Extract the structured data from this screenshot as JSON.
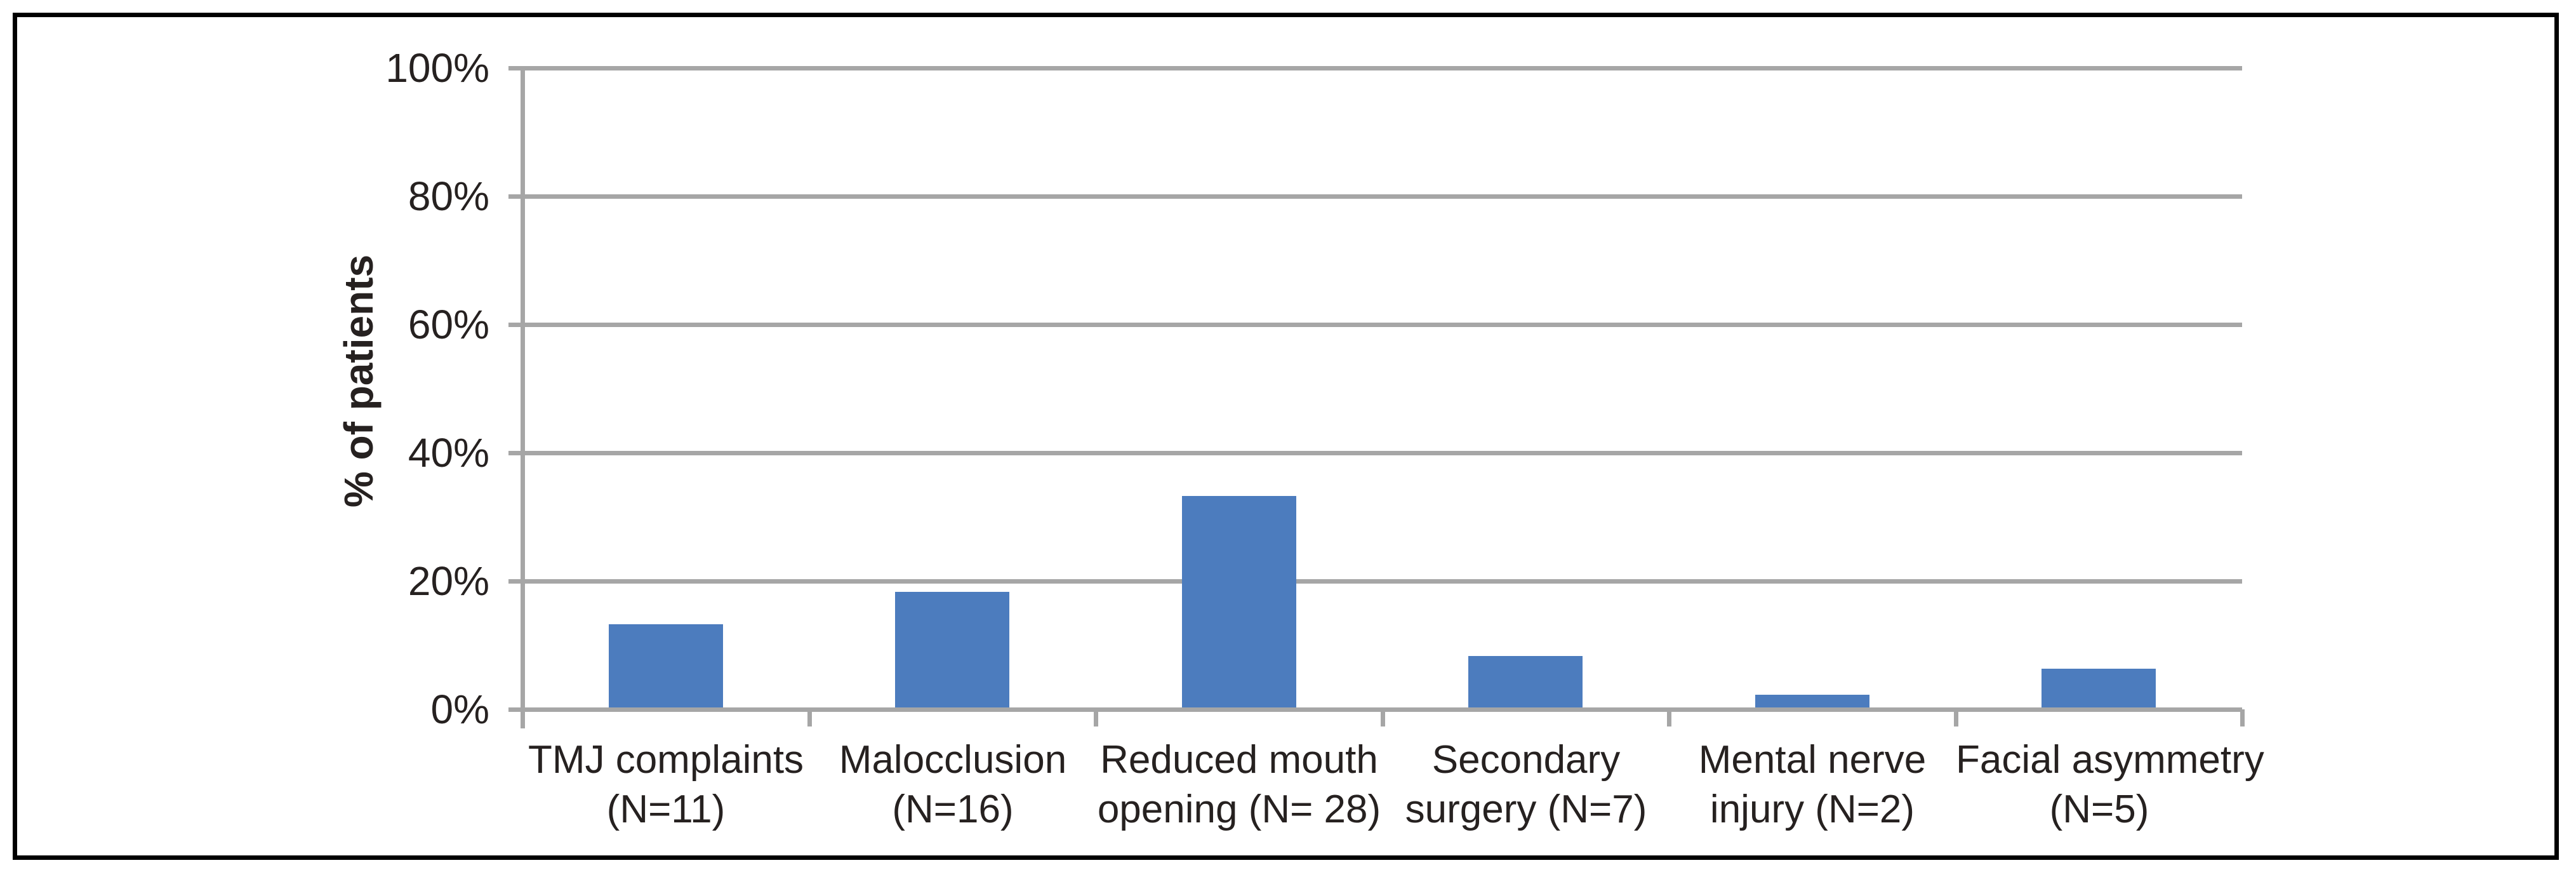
{
  "chart_data": {
    "type": "bar",
    "title": "",
    "xlabel": "",
    "ylabel": "% of patients",
    "categories": [
      "TMJ complaints (N=11)",
      "Malocclusion (N=16)",
      "Reduced mouth opening (N= 28)",
      "Secondary surgery (N=7)",
      "Mental nerve injury (N=2)",
      "Facial asymmetry (N=5)"
    ],
    "category_label_lines": [
      [
        "TMJ complaints",
        "(N=11)"
      ],
      [
        "Malocclusion",
        "(N=16)"
      ],
      [
        "Reduced mouth",
        "opening (N= 28)"
      ],
      [
        "Secondary",
        "surgery (N=7)"
      ],
      [
        "Mental nerve",
        "injury (N=2)"
      ],
      [
        "Facial asymmetry",
        "(N=5)"
      ]
    ],
    "patient_counts": [
      11,
      16,
      28,
      7,
      2,
      5
    ],
    "values": [
      13,
      18,
      33,
      8,
      2,
      6
    ],
    "value_unit": "%",
    "y_tick_labels": [
      "0%",
      "20%",
      "40%",
      "60%",
      "80%",
      "100%"
    ],
    "y_tick_values": [
      0,
      20,
      40,
      60,
      80,
      100
    ],
    "ylim": [
      0,
      100
    ],
    "grid": true,
    "legend": "none",
    "colors": {
      "bar": "#4C7CBE",
      "gridline": "#A6A6A6",
      "axis": "#A6A6A6",
      "text": "#262120",
      "frame": "#000000",
      "background": "#FFFFFF"
    }
  }
}
